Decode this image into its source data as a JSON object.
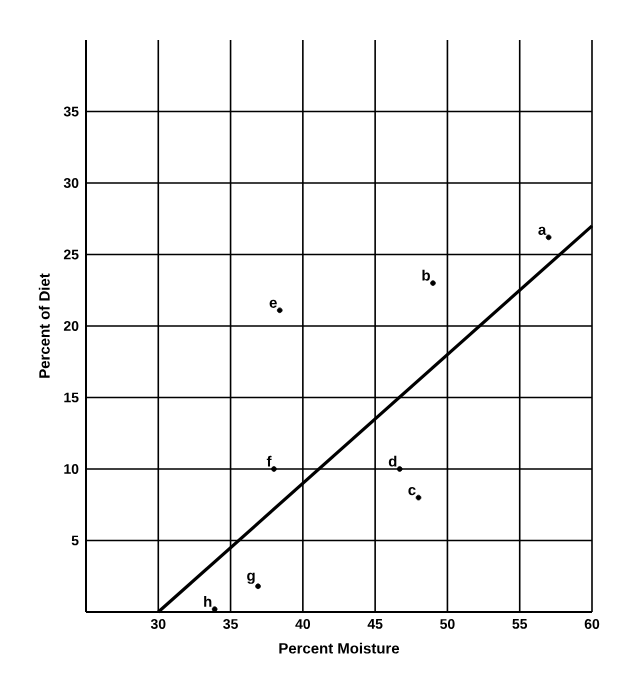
{
  "chart_data": {
    "type": "scatter",
    "xlabel": "Percent Moisture",
    "ylabel": "Percent of Diet",
    "xlim": [
      25,
      60
    ],
    "ylim": [
      0,
      40
    ],
    "xticks": [
      30,
      35,
      40,
      45,
      50,
      55,
      60
    ],
    "yticks": [
      5,
      10,
      15,
      20,
      25,
      30,
      35
    ],
    "grid": true,
    "series": [
      {
        "marker": "circle",
        "color": "#000000",
        "x": [
          57,
          49,
          48,
          46.7,
          38.4,
          38,
          36.9,
          33.9
        ],
        "values": [
          26.2,
          23,
          8,
          10,
          21.1,
          10,
          1.8,
          0.2
        ]
      },
      {
        "type": "line",
        "marker": "none",
        "color": "#000000",
        "x": [
          30,
          60
        ],
        "values": [
          0,
          27
        ]
      }
    ],
    "annotations": [
      {
        "text": "a",
        "x": 57,
        "y": 26.2
      },
      {
        "text": "b",
        "x": 49,
        "y": 23
      },
      {
        "text": "c",
        "x": 48,
        "y": 8
      },
      {
        "text": "d",
        "x": 46.7,
        "y": 10
      },
      {
        "text": "e",
        "x": 38.4,
        "y": 21.1
      },
      {
        "text": "f",
        "x": 38,
        "y": 10
      },
      {
        "text": "g",
        "x": 36.9,
        "y": 1.8
      },
      {
        "text": "h",
        "x": 33.9,
        "y": 0.2
      }
    ]
  }
}
